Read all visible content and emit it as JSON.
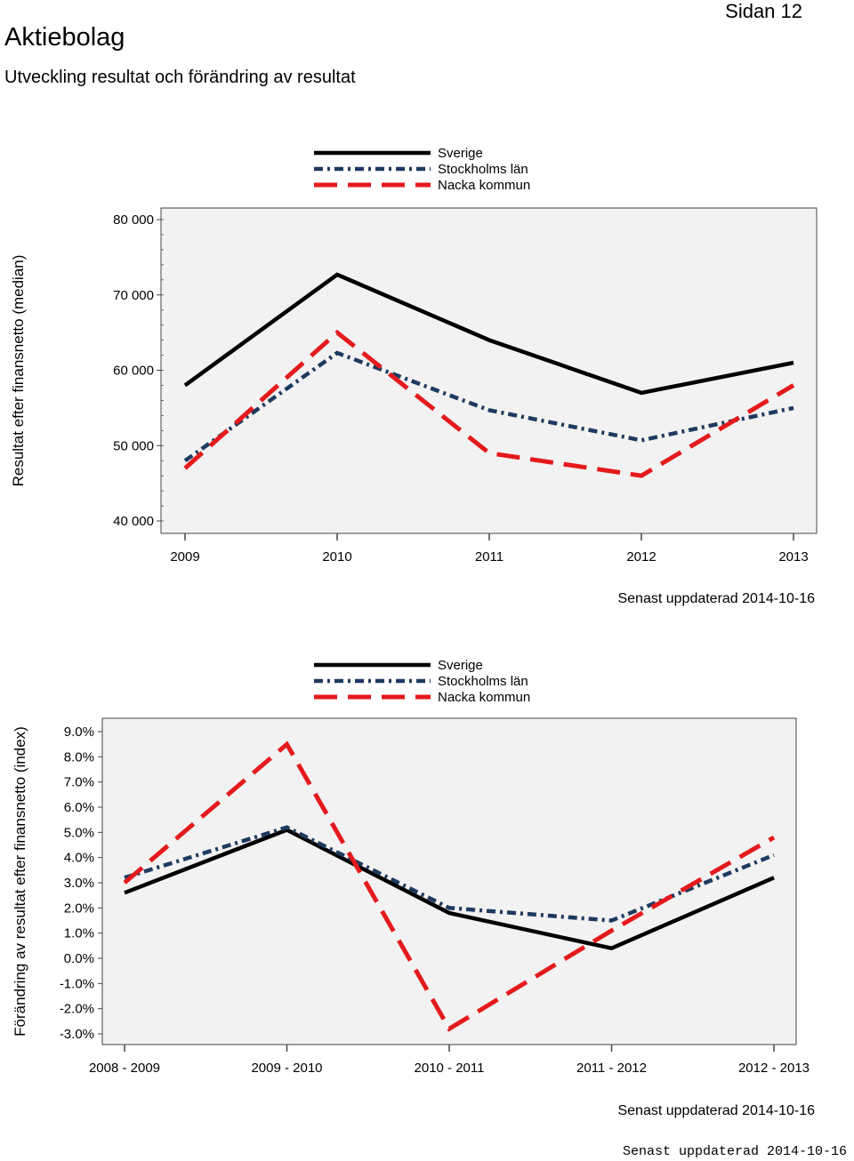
{
  "header": {
    "title": "Aktiebolag",
    "page": "Sidan 12",
    "subtitle": "Utveckling resultat och förändring av resultat"
  },
  "footer": {
    "note": "Senast uppdaterad 2014-10-16"
  },
  "chart_data": [
    {
      "type": "line",
      "title": "",
      "ylabel": "Resultat efter finansnetto (median)",
      "xlabel": "",
      "categories": [
        "2009",
        "2010",
        "2011",
        "2012",
        "2013"
      ],
      "ylim": [
        40000,
        80000
      ],
      "yticks": [
        40000,
        50000,
        60000,
        70000,
        80000
      ],
      "ytick_labels": [
        "40 000",
        "50 000",
        "60 000",
        "70 000",
        "80 000"
      ],
      "legend": {
        "position": "top",
        "entries": [
          "Sverige",
          "Stockholms län",
          "Nacka kommun"
        ]
      },
      "series": [
        {
          "name": "Sverige",
          "values": [
            58000,
            72700,
            64000,
            57000,
            61000
          ],
          "color": "#000000",
          "style": "solid"
        },
        {
          "name": "Stockholms län",
          "values": [
            48000,
            62300,
            54700,
            50700,
            55000
          ],
          "color": "#1f3a5f",
          "style": "dash-dot"
        },
        {
          "name": "Nacka kommun",
          "values": [
            47000,
            65000,
            49000,
            46000,
            58000
          ],
          "color": "#e41a1c",
          "style": "dash"
        }
      ],
      "updated": "Senast uppdaterad 2014-10-16"
    },
    {
      "type": "line",
      "title": "",
      "ylabel": "Förändring av resultat efter finansnetto (index)",
      "xlabel": "",
      "categories": [
        "2008 - 2009",
        "2009 - 2010",
        "2010 - 2011",
        "2011 - 2012",
        "2012 - 2013"
      ],
      "ylim": [
        -3.0,
        9.0
      ],
      "yticks": [
        -3,
        -2,
        -1,
        0,
        1,
        2,
        3,
        4,
        5,
        6,
        7,
        8,
        9
      ],
      "ytick_labels": [
        "-3.0%",
        "-2.0%",
        "-1.0%",
        "0.0%",
        "1.0%",
        "2.0%",
        "3.0%",
        "4.0%",
        "5.0%",
        "6.0%",
        "7.0%",
        "8.0%",
        "9.0%"
      ],
      "legend": {
        "position": "top",
        "entries": [
          "Sverige",
          "Stockholms län",
          "Nacka kommun"
        ]
      },
      "series": [
        {
          "name": "Sverige",
          "values": [
            2.6,
            5.1,
            1.8,
            0.4,
            3.2
          ],
          "color": "#000000",
          "style": "solid"
        },
        {
          "name": "Stockholms län",
          "values": [
            3.2,
            5.2,
            2.0,
            1.5,
            4.1
          ],
          "color": "#1f3a5f",
          "style": "dash-dot"
        },
        {
          "name": "Nacka kommun",
          "values": [
            3.0,
            8.5,
            -2.8,
            1.1,
            4.8
          ],
          "color": "#e41a1c",
          "style": "dash"
        }
      ],
      "updated": "Senast uppdaterad 2014-10-16"
    }
  ]
}
